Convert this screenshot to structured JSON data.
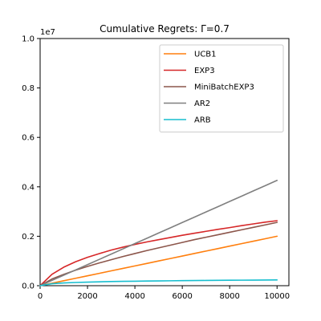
{
  "chart_data": {
    "type": "line",
    "title": "Cumulative Regrets: Γ=0.7",
    "xlabel": "",
    "ylabel": "",
    "xlim": [
      0,
      10500
    ],
    "ylim": [
      0,
      10000000
    ],
    "x_ticks": [
      0,
      2000,
      4000,
      6000,
      8000,
      10000
    ],
    "x_tick_labels": [
      "0",
      "2000",
      "4000",
      "6000",
      "8000",
      "10000"
    ],
    "y_ticks": [
      0,
      2000000,
      4000000,
      6000000,
      8000000,
      10000000
    ],
    "y_tick_labels": [
      "0.0",
      "0.2",
      "0.4",
      "0.6",
      "0.8",
      "1.0"
    ],
    "y_offset_label": "1e7",
    "grid": false,
    "legend_position": "upper right",
    "x": [
      0,
      500,
      1000,
      1500,
      2000,
      2500,
      3000,
      3500,
      4000,
      4500,
      5000,
      5500,
      6000,
      6500,
      7000,
      7500,
      8000,
      8500,
      9000,
      9500,
      10000
    ],
    "series": [
      {
        "name": "UCB1",
        "color": "#ff7f0e",
        "values": [
          0,
          100000,
          200000,
          300000,
          400000,
          500000,
          600000,
          700000,
          800000,
          900000,
          1000000,
          1100000,
          1200000,
          1300000,
          1400000,
          1500000,
          1600000,
          1700000,
          1800000,
          1900000,
          2000000
        ]
      },
      {
        "name": "EXP3",
        "color": "#d62728",
        "values": [
          0,
          460000,
          750000,
          970000,
          1150000,
          1300000,
          1440000,
          1560000,
          1670000,
          1770000,
          1860000,
          1950000,
          2040000,
          2120000,
          2200000,
          2280000,
          2350000,
          2430000,
          2500000,
          2570000,
          2630000
        ]
      },
      {
        "name": "MiniBatchEXP3",
        "color": "#8c564b",
        "values": [
          0,
          270000,
          460000,
          630000,
          780000,
          920000,
          1050000,
          1180000,
          1300000,
          1420000,
          1530000,
          1640000,
          1750000,
          1860000,
          1960000,
          2060000,
          2160000,
          2260000,
          2360000,
          2460000,
          2560000
        ]
      },
      {
        "name": "AR2",
        "color": "#7f7f7f",
        "values": [
          0,
          213000,
          426000,
          639000,
          852000,
          1065000,
          1278000,
          1491000,
          1704000,
          1917000,
          2130000,
          2343000,
          2556000,
          2769000,
          2982000,
          3195000,
          3408000,
          3621000,
          3834000,
          4047000,
          4260000
        ]
      },
      {
        "name": "ARB",
        "color": "#17becf",
        "values": [
          0,
          80000,
          110000,
          130000,
          145000,
          157000,
          167000,
          175000,
          182000,
          188000,
          194000,
          199000,
          204000,
          208000,
          212000,
          216000,
          220000,
          223000,
          226000,
          229000,
          232000
        ]
      }
    ]
  }
}
